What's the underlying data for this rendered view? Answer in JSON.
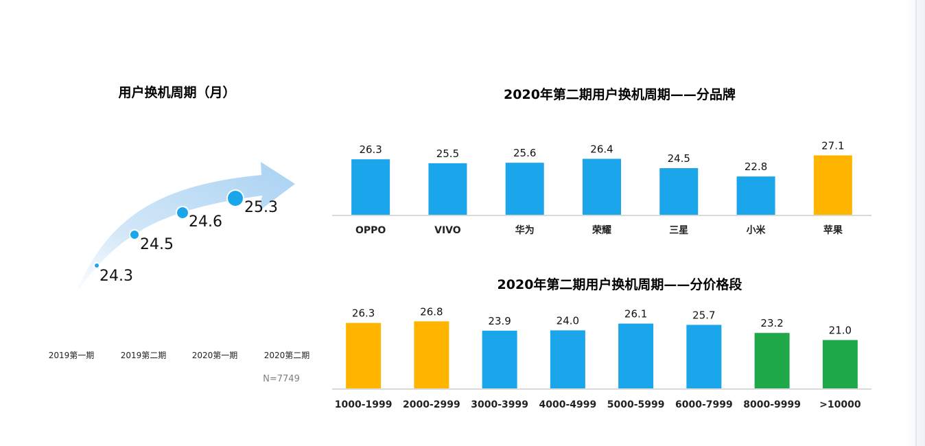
{
  "colors": {
    "blue": "#1ba6ec",
    "orange": "#ffb400",
    "green": "#1fa84a",
    "arrow": "#c6e1f6",
    "axis": "#d9d9d9",
    "dot": "#1ba6ec"
  },
  "chart_data": [
    {
      "type": "line",
      "title": "用户换机周期（月）",
      "categories": [
        "2019第一期",
        "2019第二期",
        "2020第一期",
        "2020第二期"
      ],
      "values": [
        24.3,
        24.5,
        24.6,
        25.3
      ],
      "value_labels": [
        "24.3",
        "24.5",
        "24.6",
        "25.3"
      ],
      "note": "N=7749",
      "style": "curved-arrow-with-bubbles"
    },
    {
      "type": "bar",
      "title": "2020年第二期用户换机周期——分品牌",
      "categories": [
        "OPPO",
        "VIVO",
        "华为",
        "荣耀",
        "三星",
        "小米",
        "苹果"
      ],
      "values": [
        26.3,
        25.5,
        25.6,
        26.4,
        24.5,
        22.8,
        27.1
      ],
      "value_labels": [
        "26.3",
        "25.5",
        "25.6",
        "26.4",
        "24.5",
        "22.8",
        "27.1"
      ],
      "bar_colors": [
        "blue",
        "blue",
        "blue",
        "blue",
        "blue",
        "blue",
        "orange"
      ],
      "ylim": [
        15,
        28
      ],
      "grid": false
    },
    {
      "type": "bar",
      "title": "2020年第二期用户换机周期——分价格段",
      "categories": [
        "1000-1999",
        "2000-2999",
        "3000-3999",
        "4000-4999",
        "5000-5999",
        "6000-7999",
        "8000-9999",
        ">10000"
      ],
      "values": [
        26.3,
        26.8,
        23.9,
        24.0,
        26.1,
        25.7,
        23.2,
        21.0
      ],
      "value_labels": [
        "26.3",
        "26.8",
        "23.9",
        "24.0",
        "26.1",
        "25.7",
        "23.2",
        "21.0"
      ],
      "bar_colors": [
        "orange",
        "orange",
        "blue",
        "blue",
        "blue",
        "blue",
        "green",
        "green"
      ],
      "ylim": [
        6,
        27.5
      ],
      "grid": false
    }
  ]
}
